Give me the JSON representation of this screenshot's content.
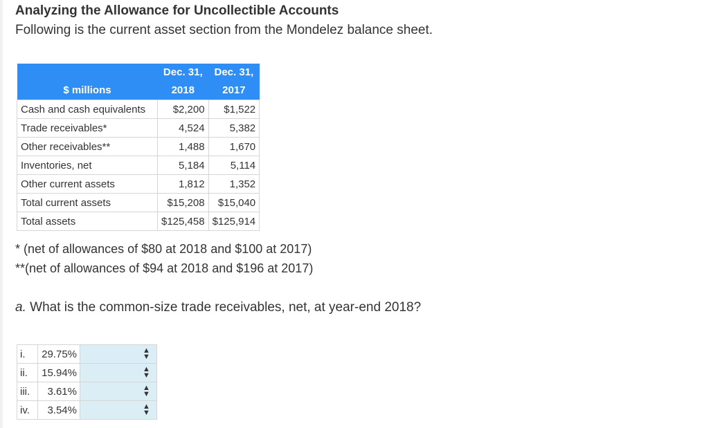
{
  "header": {
    "title": "Analyzing the Allowance for Uncollectible Accounts",
    "subtitle": "Following is the current asset section from the Mondelez balance sheet."
  },
  "balance_table": {
    "label_header": "$ millions",
    "col1_line1": "Dec. 31,",
    "col1_line2": "2018",
    "col2_line1": "Dec. 31,",
    "col2_line2": "2017",
    "rows": [
      {
        "label": "Cash and cash equivalents",
        "v2018": "$2,200",
        "v2017": "$1,522"
      },
      {
        "label": "Trade receivables*",
        "v2018": "4,524",
        "v2017": "5,382"
      },
      {
        "label": "Other receivables**",
        "v2018": "1,488",
        "v2017": "1,670"
      },
      {
        "label": "Inventories, net",
        "v2018": "5,184",
        "v2017": "5,114"
      },
      {
        "label": "Other current assets",
        "v2018": "1,812",
        "v2017": "1,352"
      },
      {
        "label": "Total current assets",
        "v2018": "$15,208",
        "v2017": "$15,040"
      },
      {
        "label": "Total assets",
        "v2018": "$125,458",
        "v2017": "$125,914"
      }
    ]
  },
  "notes": {
    "note1": "* (net of allowances of $80 at 2018 and $100 at 2017)",
    "note2": "**(net of allowances of $94 at 2018 and $196 at 2017)"
  },
  "question": {
    "prefix": "a.",
    "text": " What is the common-size trade receivables, net, at year-end 2018?"
  },
  "answers": [
    {
      "index": "i.",
      "value": "29.75%",
      "selected": ""
    },
    {
      "index": "ii.",
      "value": "15.94%",
      "selected": ""
    },
    {
      "index": "iii.",
      "value": "3.61%",
      "selected": ""
    },
    {
      "index": "iv.",
      "value": "3.54%",
      "selected": ""
    }
  ]
}
